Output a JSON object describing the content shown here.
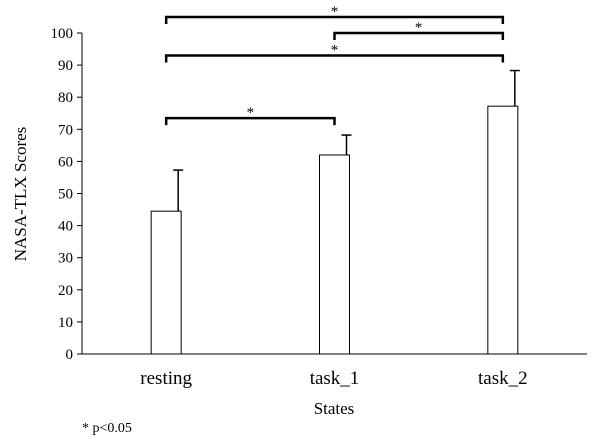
{
  "chart_data": {
    "type": "bar",
    "categories": [
      "resting",
      "task_1",
      "task_2"
    ],
    "series": [
      {
        "values": [
          44.5,
          62,
          77.2
        ],
        "error": [
          12.8,
          6.2,
          11.1
        ]
      }
    ],
    "xlabel": "States",
    "ylabel": "NASA-TLX Scores",
    "ylim": [
      0,
      100
    ],
    "yticks": [
      0,
      10,
      20,
      30,
      40,
      50,
      60,
      70,
      80,
      90,
      100
    ],
    "grid": false,
    "significance": [
      {
        "from": 0,
        "to": 1,
        "label": "*",
        "level": 73.5
      },
      {
        "from": 0,
        "to": 2,
        "label": "*",
        "level": 93
      },
      {
        "from": 1,
        "to": 2,
        "label": "*",
        "level": 100
      },
      {
        "from": 0,
        "to": 2,
        "label": "*",
        "level": 105
      }
    ],
    "footnote": "* p<0.05"
  }
}
